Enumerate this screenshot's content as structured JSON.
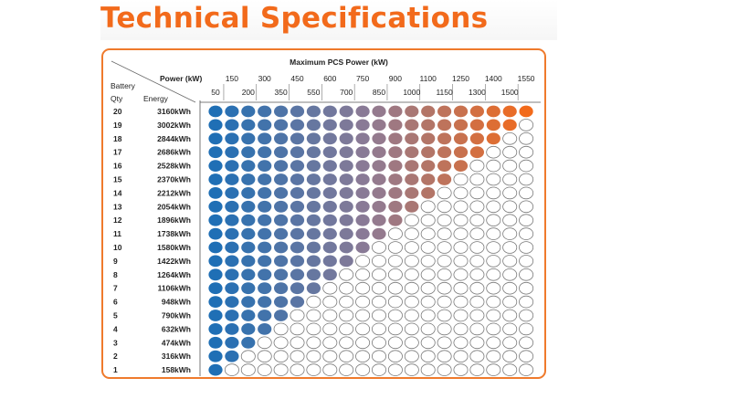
{
  "page": {
    "title": "Technical Specifications"
  },
  "colors": {
    "accent": "#f26a1b",
    "scale_low": "#1f6fb5",
    "scale_mid": "#8f7b94",
    "scale_high": "#f26a1b",
    "empty": "#ffffff",
    "outline": "#7a7a7a"
  },
  "chart_data": {
    "type": "table",
    "title": "Maximum PCS Power (kW)",
    "power_header": "Power (kW)",
    "battery_header": "Battery",
    "qty_header": "Qty",
    "energy_header": "Energy",
    "power_top": [
      "150",
      "300",
      "450",
      "600",
      "750",
      "900",
      "1100",
      "1250",
      "1400",
      "1550"
    ],
    "power_bottom": [
      "50",
      "200",
      "350",
      "550",
      "700",
      "850",
      "1000",
      "1150",
      "1300",
      "1500"
    ],
    "power_values_kw": [
      50,
      150,
      200,
      300,
      350,
      450,
      550,
      600,
      700,
      750,
      850,
      900,
      1000,
      1100,
      1150,
      1250,
      1300,
      1400,
      1500,
      1550
    ],
    "rows": [
      {
        "qty": "20",
        "energy": "3160kWh",
        "filled": 20
      },
      {
        "qty": "19",
        "energy": "3002kWh",
        "filled": 19
      },
      {
        "qty": "18",
        "energy": "2844kWh",
        "filled": 18
      },
      {
        "qty": "17",
        "energy": "2686kWh",
        "filled": 17
      },
      {
        "qty": "16",
        "energy": "2528kWh",
        "filled": 16
      },
      {
        "qty": "15",
        "energy": "2370kWh",
        "filled": 15
      },
      {
        "qty": "14",
        "energy": "2212kWh",
        "filled": 14
      },
      {
        "qty": "13",
        "energy": "2054kWh",
        "filled": 13
      },
      {
        "qty": "12",
        "energy": "1896kWh",
        "filled": 12
      },
      {
        "qty": "11",
        "energy": "1738kWh",
        "filled": 11
      },
      {
        "qty": "10",
        "energy": "1580kWh",
        "filled": 10
      },
      {
        "qty": "9",
        "energy": "1422kWh",
        "filled": 9
      },
      {
        "qty": "8",
        "energy": "1264kWh",
        "filled": 8
      },
      {
        "qty": "7",
        "energy": "1106kWh",
        "filled": 7
      },
      {
        "qty": "6",
        "energy": "948kWh",
        "filled": 6
      },
      {
        "qty": "5",
        "energy": "790kWh",
        "filled": 5
      },
      {
        "qty": "4",
        "energy": "632kWh",
        "filled": 4
      },
      {
        "qty": "3",
        "energy": "474kWh",
        "filled": 3
      },
      {
        "qty": "2",
        "energy": "316kWh",
        "filled": 2
      },
      {
        "qty": "1",
        "energy": "158kWh",
        "filled": 1
      }
    ]
  }
}
